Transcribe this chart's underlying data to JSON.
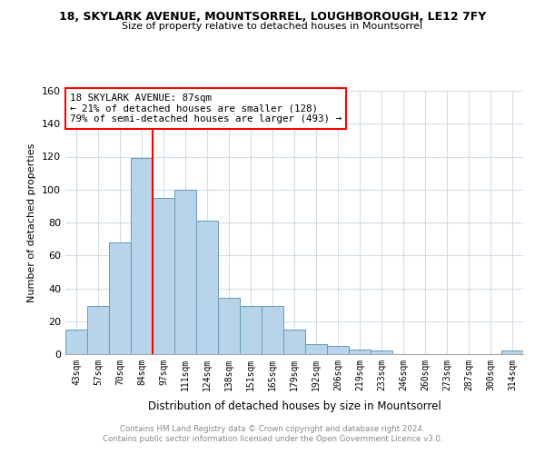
{
  "title_line1": "18, SKYLARK AVENUE, MOUNTSORREL, LOUGHBOROUGH, LE12 7FY",
  "title_line2": "Size of property relative to detached houses in Mountsorrel",
  "xlabel": "Distribution of detached houses by size in Mountsorrel",
  "ylabel": "Number of detached properties",
  "footer_line1": "Contains HM Land Registry data © Crown copyright and database right 2024.",
  "footer_line2": "Contains public sector information licensed under the Open Government Licence v3.0.",
  "bar_labels": [
    "43sqm",
    "57sqm",
    "70sqm",
    "84sqm",
    "97sqm",
    "111sqm",
    "124sqm",
    "138sqm",
    "151sqm",
    "165sqm",
    "179sqm",
    "192sqm",
    "206sqm",
    "219sqm",
    "233sqm",
    "246sqm",
    "260sqm",
    "273sqm",
    "287sqm",
    "300sqm",
    "314sqm"
  ],
  "bar_values": [
    15,
    29,
    68,
    119,
    95,
    100,
    81,
    34,
    29,
    29,
    15,
    6,
    5,
    3,
    2,
    0,
    0,
    0,
    0,
    0,
    2
  ],
  "bar_color": "#b8d4ea",
  "bar_edge_color": "#6699bb",
  "vline_x": 3.5,
  "vline_color": "red",
  "ylim": [
    0,
    160
  ],
  "yticks": [
    0,
    20,
    40,
    60,
    80,
    100,
    120,
    140,
    160
  ],
  "annotation_title": "18 SKYLARK AVENUE: 87sqm",
  "annotation_line2": "← 21% of detached houses are smaller (128)",
  "annotation_line3": "79% of semi-detached houses are larger (493) →",
  "background_color": "#ffffff",
  "grid_color": "#d0dce8"
}
